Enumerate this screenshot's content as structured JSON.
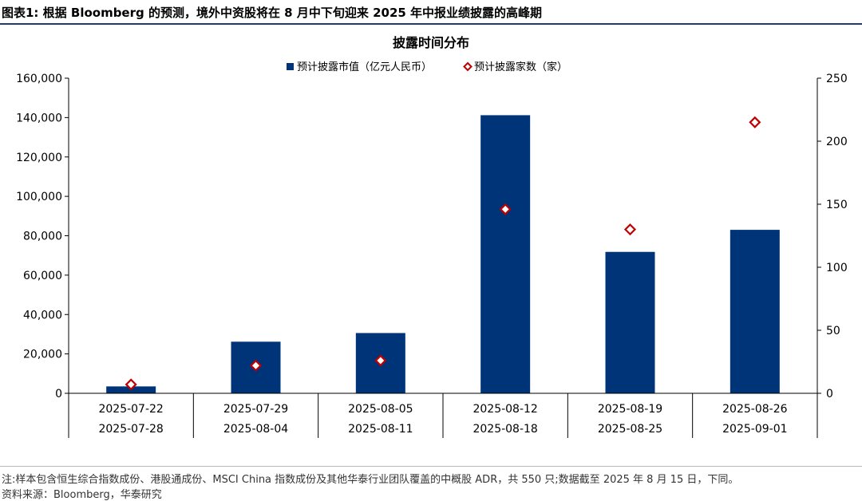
{
  "header": {
    "title": "图表1:  根据 Bloomberg 的预测，境外中资股将在 8 月中下旬迎来 2025 年中报业绩披露的高峰期"
  },
  "chart_data": {
    "type": "bar",
    "title": "披露时间分布",
    "categories": [
      [
        "2025-07-22",
        "2025-07-28"
      ],
      [
        "2025-07-29",
        "2025-08-04"
      ],
      [
        "2025-08-05",
        "2025-08-11"
      ],
      [
        "2025-08-12",
        "2025-08-18"
      ],
      [
        "2025-08-19",
        "2025-08-25"
      ],
      [
        "2025-08-26",
        "2025-09-01"
      ]
    ],
    "series": [
      {
        "name": "预计披露市值（亿元人民币）",
        "type": "bar",
        "axis": "left",
        "color": "#003478",
        "values": [
          3500,
          26200,
          30600,
          141200,
          71800,
          83000
        ]
      },
      {
        "name": "预计披露家数（家）",
        "type": "scatter",
        "axis": "right",
        "color": "#c00000",
        "values": [
          7,
          22,
          26,
          146,
          130,
          215
        ]
      }
    ],
    "y_left": {
      "min": 0,
      "max": 160000,
      "ticks": [
        "0",
        "20,000",
        "40,000",
        "60,000",
        "80,000",
        "100,000",
        "120,000",
        "140,000",
        "160,000"
      ]
    },
    "y_right": {
      "min": 0,
      "max": 250,
      "ticks": [
        "0",
        "50",
        "100",
        "150",
        "200",
        "250"
      ]
    },
    "legend_position": "top-center",
    "grid": false
  },
  "footer": {
    "note": "注:样本包含恒生综合指数成份、港股通成份、MSCI China 指数成份及其他华泰行业团队覆盖的中概股 ADR，共 550 只;数据截至 2025 年 8 月 15 日，下同。",
    "source": "资料来源：Bloomberg，华泰研究"
  }
}
